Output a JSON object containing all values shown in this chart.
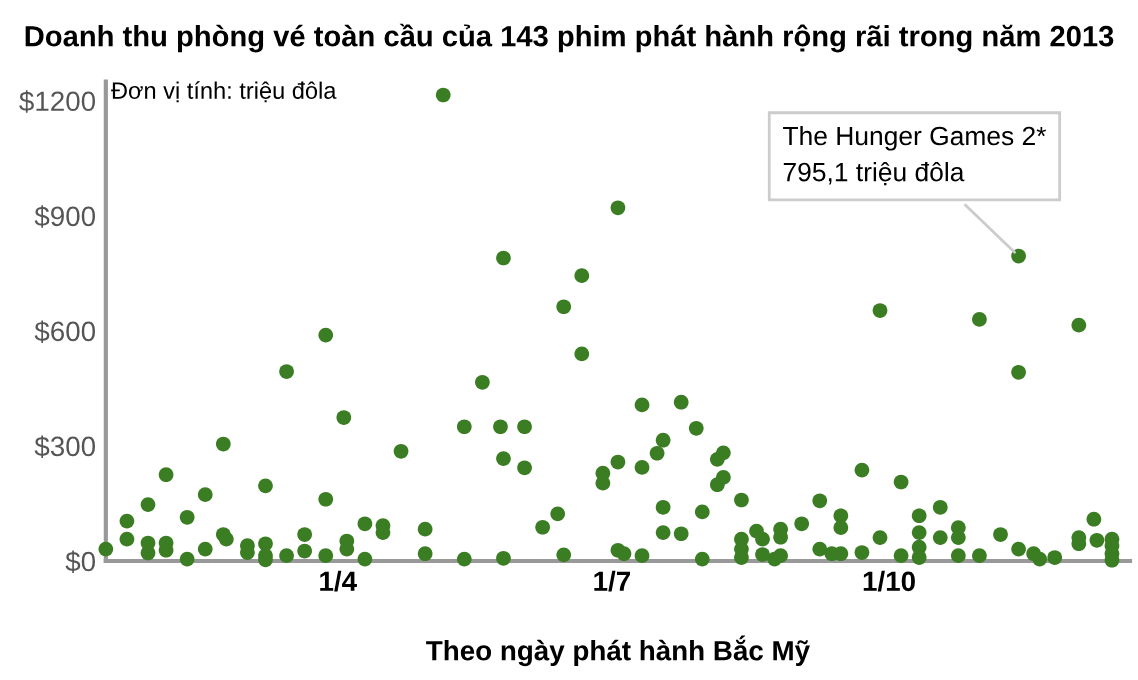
{
  "chart_data": {
    "type": "scatter",
    "title": "Doanh thu phòng vé toàn cầu của 143 phim phát hành rộng rãi trong năm 2013",
    "xlabel": "Theo ngày phát hành Bắc Mỹ",
    "annotations": [
      "Đơn vị tính: triệu đôla",
      {
        "text": "The Hunger Games 2*\n795,1 triệu đôla",
        "x": "2013-11-13",
        "y": 795.1
      }
    ],
    "x": [
      "2013-01-14",
      "2013-01-21",
      "2013-01-21",
      "2013-01-28",
      "2013-01-28",
      "2013-01-28",
      "2013-02-03",
      "2013-02-03",
      "2013-02-03",
      "2013-02-10",
      "2013-02-10",
      "2013-02-16",
      "2013-02-16",
      "2013-02-22",
      "2013-02-22",
      "2013-02-23",
      "2013-03-02",
      "2013-03-02",
      "2013-03-08",
      "2013-03-08",
      "2013-03-08",
      "2013-03-08",
      "2013-03-15",
      "2013-03-15",
      "2013-03-21",
      "2013-03-21",
      "2013-03-28",
      "2013-03-28",
      "2013-03-28",
      "2013-04-03",
      "2013-04-04",
      "2013-04-04",
      "2013-04-10",
      "2013-04-10",
      "2013-04-16",
      "2013-04-16",
      "2013-04-22",
      "2013-04-30",
      "2013-04-30",
      "2013-05-06",
      "2013-05-13",
      "2013-05-13",
      "2013-05-19",
      "2013-05-25",
      "2013-05-26",
      "2013-05-26",
      "2013-05-26",
      "2013-06-02",
      "2013-06-02",
      "2013-06-08",
      "2013-06-13",
      "2013-06-15",
      "2013-06-15",
      "2013-06-21",
      "2013-06-21",
      "2013-06-28",
      "2013-06-28",
      "2013-07-03",
      "2013-07-03",
      "2013-07-03",
      "2013-07-05",
      "2013-07-11",
      "2013-07-11",
      "2013-07-11",
      "2013-07-16",
      "2013-07-18",
      "2013-07-18",
      "2013-07-18",
      "2013-07-24",
      "2013-07-24",
      "2013-07-29",
      "2013-07-31",
      "2013-07-31",
      "2013-08-05",
      "2013-08-05",
      "2013-08-07",
      "2013-08-07",
      "2013-08-13",
      "2013-08-13",
      "2013-08-13",
      "2013-08-13",
      "2013-08-18",
      "2013-08-20",
      "2013-08-20",
      "2013-08-24",
      "2013-08-26",
      "2013-08-26",
      "2013-08-26",
      "2013-09-02",
      "2013-09-08",
      "2013-09-08",
      "2013-09-12",
      "2013-09-15",
      "2013-09-15",
      "2013-09-15",
      "2013-09-22",
      "2013-09-22",
      "2013-09-28",
      "2013-09-28",
      "2013-10-05",
      "2013-10-05",
      "2013-10-11",
      "2013-10-11",
      "2013-10-11",
      "2013-10-11",
      "2013-10-18",
      "2013-10-18",
      "2013-10-24",
      "2013-10-24",
      "2013-10-24",
      "2013-10-31",
      "2013-10-31",
      "2013-11-07",
      "2013-11-13",
      "2013-11-13",
      "2013-11-13",
      "2013-11-18",
      "2013-11-20",
      "2013-11-25",
      "2013-12-03",
      "2013-12-03",
      "2013-12-03",
      "2013-12-08",
      "2013-12-09",
      "2013-12-14",
      "2013-12-14",
      "2013-12-14",
      "2013-12-14"
    ],
    "values": [
      31,
      104,
      57,
      147,
      47,
      21,
      225,
      47,
      28,
      114,
      5,
      173,
      31,
      305,
      69,
      57,
      40,
      22,
      196,
      45,
      14,
      3,
      494,
      14,
      69,
      26,
      589,
      161,
      14,
      374,
      52,
      31,
      97,
      5,
      92,
      74,
      286,
      83,
      19,
      1215,
      350,
      5,
      466,
      350,
      790,
      267,
      7,
      350,
      243,
      88,
      123,
      663,
      16,
      744,
      540,
      229,
      203,
      921,
      258,
      28,
      19,
      407,
      244,
      14,
      281,
      315,
      140,
      74,
      414,
      71,
      346,
      128,
      5,
      265,
      199,
      282,
      218,
      159,
      57,
      31,
      9,
      78,
      57,
      17,
      5,
      83,
      62,
      14,
      97,
      157,
      31,
      19,
      19,
      118,
      87,
      237,
      22,
      653,
      61,
      206,
      14,
      118,
      74,
      36,
      9,
      140,
      61,
      87,
      61,
      14,
      630,
      14,
      69,
      795.1,
      492,
      31,
      19,
      5,
      9,
      615,
      61,
      45,
      109,
      54,
      57,
      40,
      19,
      2
    ],
    "color": "#3a7d22",
    "marker": "circle",
    "xlim": [
      "2013-01-14",
      "2013-12-20"
    ],
    "xticks": [
      {
        "value": "2013-04-01",
        "label": "1/4"
      },
      {
        "value": "2013-07-01",
        "label": "1/7"
      },
      {
        "value": "2013-10-01",
        "label": "1/10"
      }
    ],
    "ylim": [
      0,
      1250
    ],
    "yticks": [
      {
        "value": 0,
        "label": "$0"
      },
      {
        "value": 300,
        "label": "$300"
      },
      {
        "value": 600,
        "label": "$600"
      },
      {
        "value": 900,
        "label": "$900"
      },
      {
        "value": 1200,
        "label": "$1200"
      }
    ],
    "grid": false,
    "legend": false
  }
}
